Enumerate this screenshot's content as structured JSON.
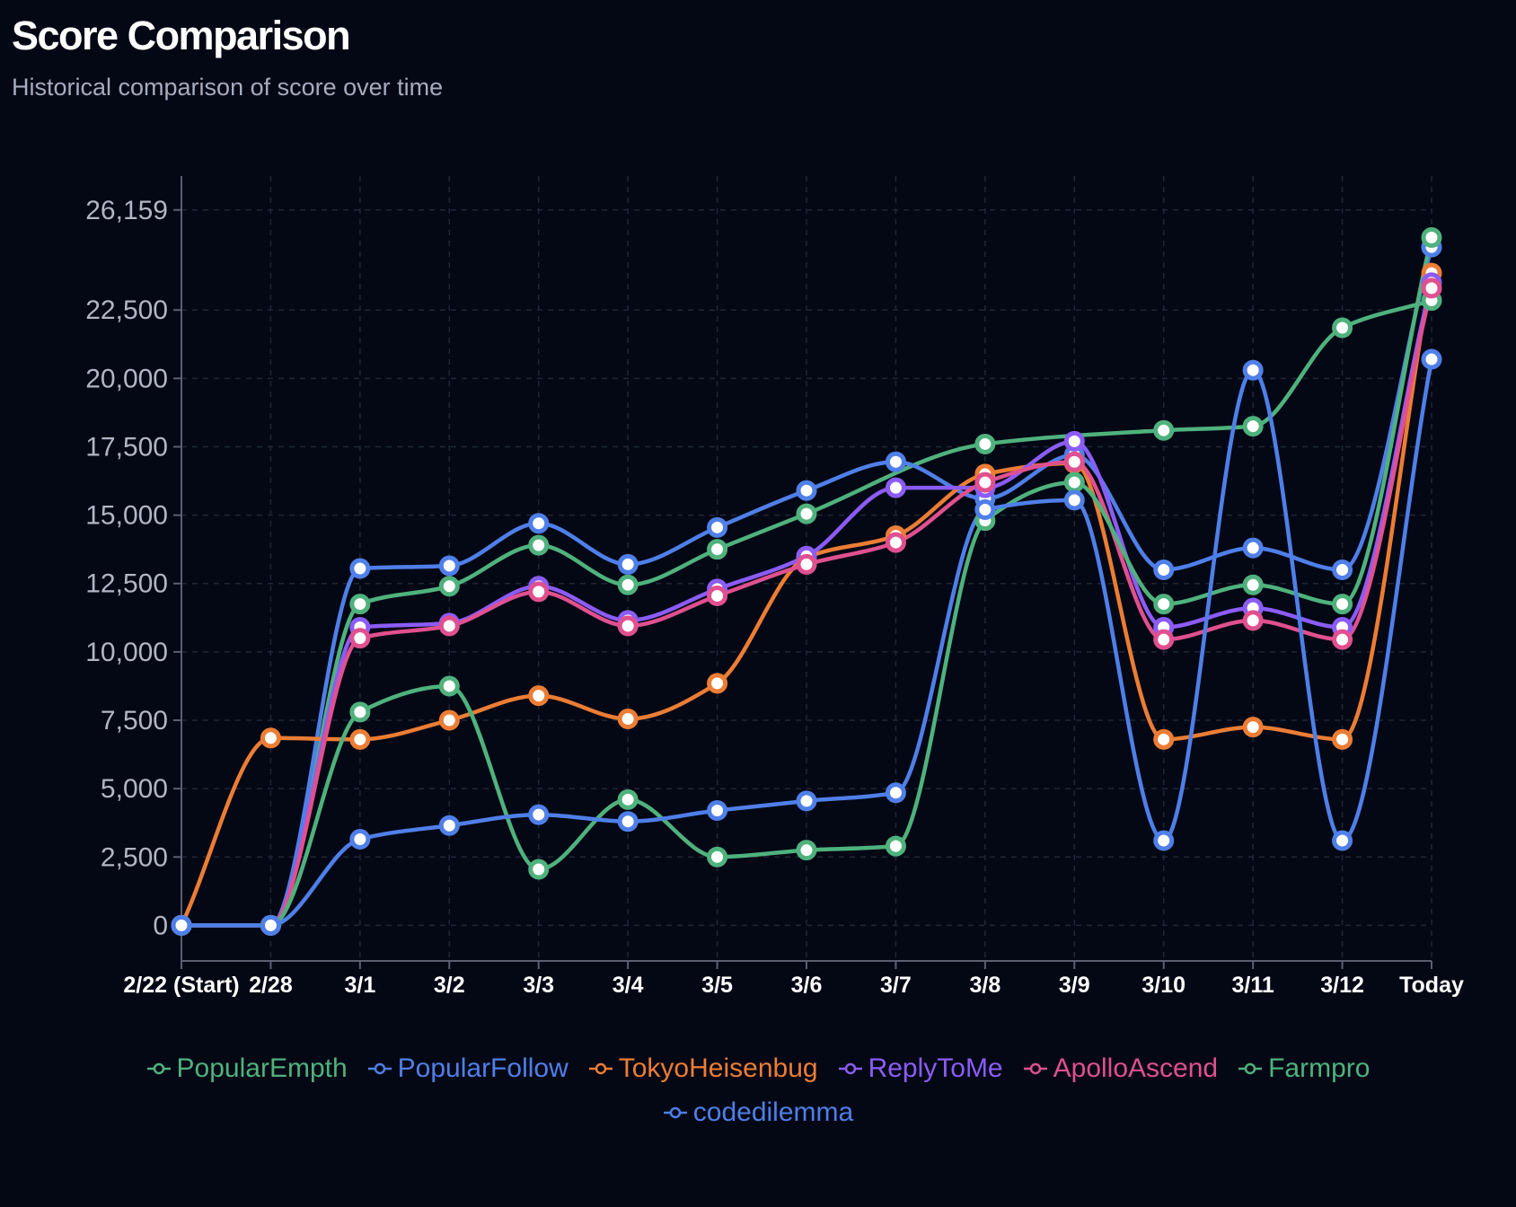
{
  "header": {
    "title": "Score Comparison",
    "subtitle": "Historical comparison of score over time"
  },
  "chart_data": {
    "type": "line",
    "title": "Score Comparison",
    "subtitle": "Historical comparison of score over time",
    "categories": [
      "2/22 (Start)",
      "2/28",
      "3/1",
      "3/2",
      "3/3",
      "3/4",
      "3/5",
      "3/6",
      "3/7",
      "3/8",
      "3/9",
      "3/10",
      "3/11",
      "3/12",
      "Today"
    ],
    "y_ticks": [
      0,
      2500,
      5000,
      7500,
      10000,
      12500,
      15000,
      17500,
      20000,
      22500,
      26159
    ],
    "y_tick_labels": [
      "0",
      "2,500",
      "5,000",
      "7,500",
      "10,000",
      "12,500",
      "15,000",
      "17,500",
      "20,000",
      "22,500",
      "26,159"
    ],
    "ylim": [
      -1300,
      27400
    ],
    "grid": true,
    "legend_position": "bottom",
    "series": [
      {
        "name": "PopularEmpth",
        "color": "#4fb27d",
        "values": [
          0,
          0,
          11750,
          12400,
          13900,
          12450,
          13750,
          15050,
          null,
          17600,
          null,
          18100,
          18250,
          21850,
          22850
        ]
      },
      {
        "name": "PopularFollow",
        "color": "#4f7fe8",
        "values": [
          0,
          0,
          13050,
          13150,
          14700,
          13200,
          14550,
          15900,
          16950,
          15600,
          17200,
          13000,
          13800,
          13000,
          24800
        ]
      },
      {
        "name": "TokyoHeisenbug",
        "color": "#ec7d34",
        "values": [
          0,
          6850,
          6800,
          7500,
          8400,
          7550,
          8850,
          13450,
          14250,
          16500,
          16900,
          6800,
          7250,
          6800,
          23850
        ]
      },
      {
        "name": "ReplyToMe",
        "color": "#8b5cf6",
        "values": [
          0,
          0,
          10900,
          11050,
          12400,
          11150,
          12300,
          13500,
          16000,
          16000,
          17700,
          10900,
          11600,
          10900,
          23500
        ]
      },
      {
        "name": "ApolloAscend",
        "color": "#e0508f",
        "values": [
          0,
          0,
          10500,
          10950,
          12200,
          10950,
          12050,
          13200,
          14000,
          16200,
          16950,
          10450,
          11150,
          10450,
          23300
        ]
      },
      {
        "name": "Farmpro",
        "color": "#4fb27d",
        "values": [
          0,
          0,
          7800,
          8750,
          2050,
          4600,
          2500,
          2750,
          2900,
          14800,
          16200,
          11750,
          12450,
          11750,
          25150
        ]
      },
      {
        "name": "codedilemma",
        "color": "#4f7fe8",
        "values": [
          0,
          0,
          3150,
          3650,
          4050,
          3800,
          4200,
          4550,
          4850,
          15200,
          15550,
          3100,
          20300,
          3100,
          20700
        ]
      }
    ]
  },
  "legend": {
    "position": "bottom"
  }
}
